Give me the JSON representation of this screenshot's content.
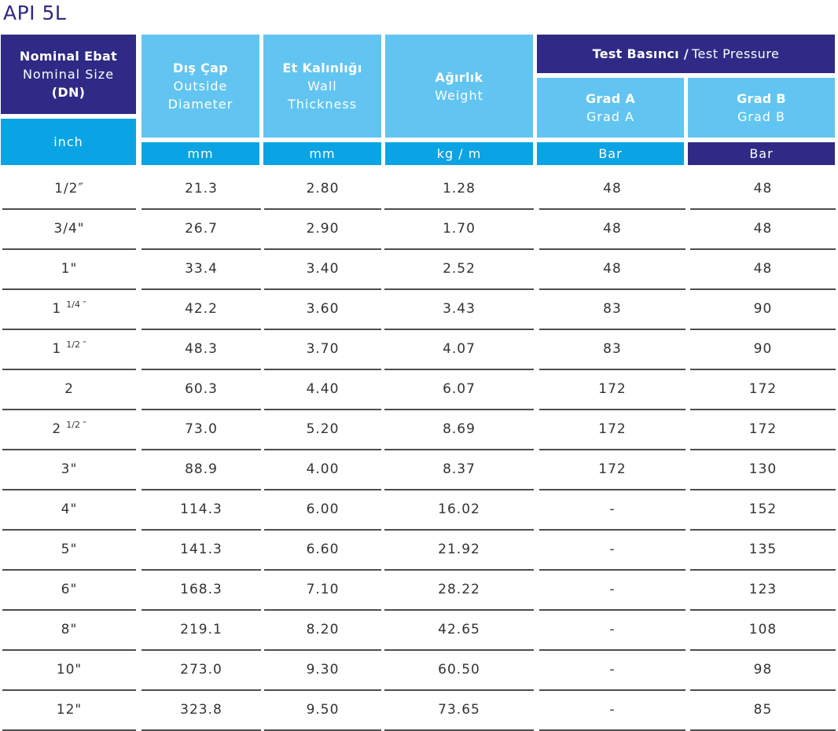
{
  "title": "API 5L",
  "header": {
    "size": {
      "line1": "Nominal Ebat",
      "line2": "Nominal Size",
      "line3": "(DN)",
      "unit": "inch"
    },
    "od": {
      "line1": "Dış Çap",
      "line2": "Outside",
      "line3": "Diameter",
      "unit": "mm"
    },
    "wall": {
      "line1": "Et Kalınlığı",
      "line2": "Wall",
      "line3": "Thickness",
      "unit": "mm"
    },
    "weight": {
      "line1": "Ağırlık",
      "line2": "Weight",
      "unit": "kg / m"
    },
    "test": {
      "bold": "Test Basıncı /",
      "normal": "Test Pressure"
    },
    "grad_a": {
      "line1": "Grad A",
      "line2": "Grad A",
      "unit": "Bar"
    },
    "grad_b": {
      "line1": "Grad B",
      "line2": "Grad B",
      "unit": "Bar"
    }
  },
  "rows": [
    {
      "size": "1/2″",
      "sup": "",
      "od": "21.3",
      "wall": "2.80",
      "weight": "1.28",
      "grad_a": "48",
      "grad_b": "48"
    },
    {
      "size": "3/4\"",
      "sup": "",
      "od": "26.7",
      "wall": "2.90",
      "weight": "1.70",
      "grad_a": "48",
      "grad_b": "48"
    },
    {
      "size": "1\"",
      "sup": "",
      "od": "33.4",
      "wall": "3.40",
      "weight": "2.52",
      "grad_a": "48",
      "grad_b": "48"
    },
    {
      "size": "1",
      "sup": "1/4 ″",
      "od": "42.2",
      "wall": "3.60",
      "weight": "3.43",
      "grad_a": "83",
      "grad_b": "90"
    },
    {
      "size": "1",
      "sup": "1/2 ″",
      "od": "48.3",
      "wall": "3.70",
      "weight": "4.07",
      "grad_a": "83",
      "grad_b": "90"
    },
    {
      "size": "2",
      "sup": "",
      "od": "60.3",
      "wall": "4.40",
      "weight": "6.07",
      "grad_a": "172",
      "grad_b": "172"
    },
    {
      "size": "2",
      "sup": "1/2 ″",
      "od": "73.0",
      "wall": "5.20",
      "weight": "8.69",
      "grad_a": "172",
      "grad_b": "172"
    },
    {
      "size": "3\"",
      "sup": "",
      "od": "88.9",
      "wall": "4.00",
      "weight": "8.37",
      "grad_a": "172",
      "grad_b": "130"
    },
    {
      "size": "4\"",
      "sup": "",
      "od": "114.3",
      "wall": "6.00",
      "weight": "16.02",
      "grad_a": "-",
      "grad_b": "152"
    },
    {
      "size": "5\"",
      "sup": "",
      "od": "141.3",
      "wall": "6.60",
      "weight": "21.92",
      "grad_a": "-",
      "grad_b": "135"
    },
    {
      "size": "6\"",
      "sup": "",
      "od": "168.3",
      "wall": "7.10",
      "weight": "28.22",
      "grad_a": "-",
      "grad_b": "123"
    },
    {
      "size": "8\"",
      "sup": "",
      "od": "219.1",
      "wall": "8.20",
      "weight": "42.65",
      "grad_a": "-",
      "grad_b": "108"
    },
    {
      "size": "10\"",
      "sup": "",
      "od": "273.0",
      "wall": "9.30",
      "weight": "60.50",
      "grad_a": "-",
      "grad_b": "98"
    },
    {
      "size": "12\"",
      "sup": "",
      "od": "323.8",
      "wall": "9.50",
      "weight": "73.65",
      "grad_a": "-",
      "grad_b": "85"
    }
  ],
  "colors": {
    "navy": "#2e2a85",
    "light_blue": "#62c5f1",
    "unit_blue": "#0aa3e4"
  }
}
